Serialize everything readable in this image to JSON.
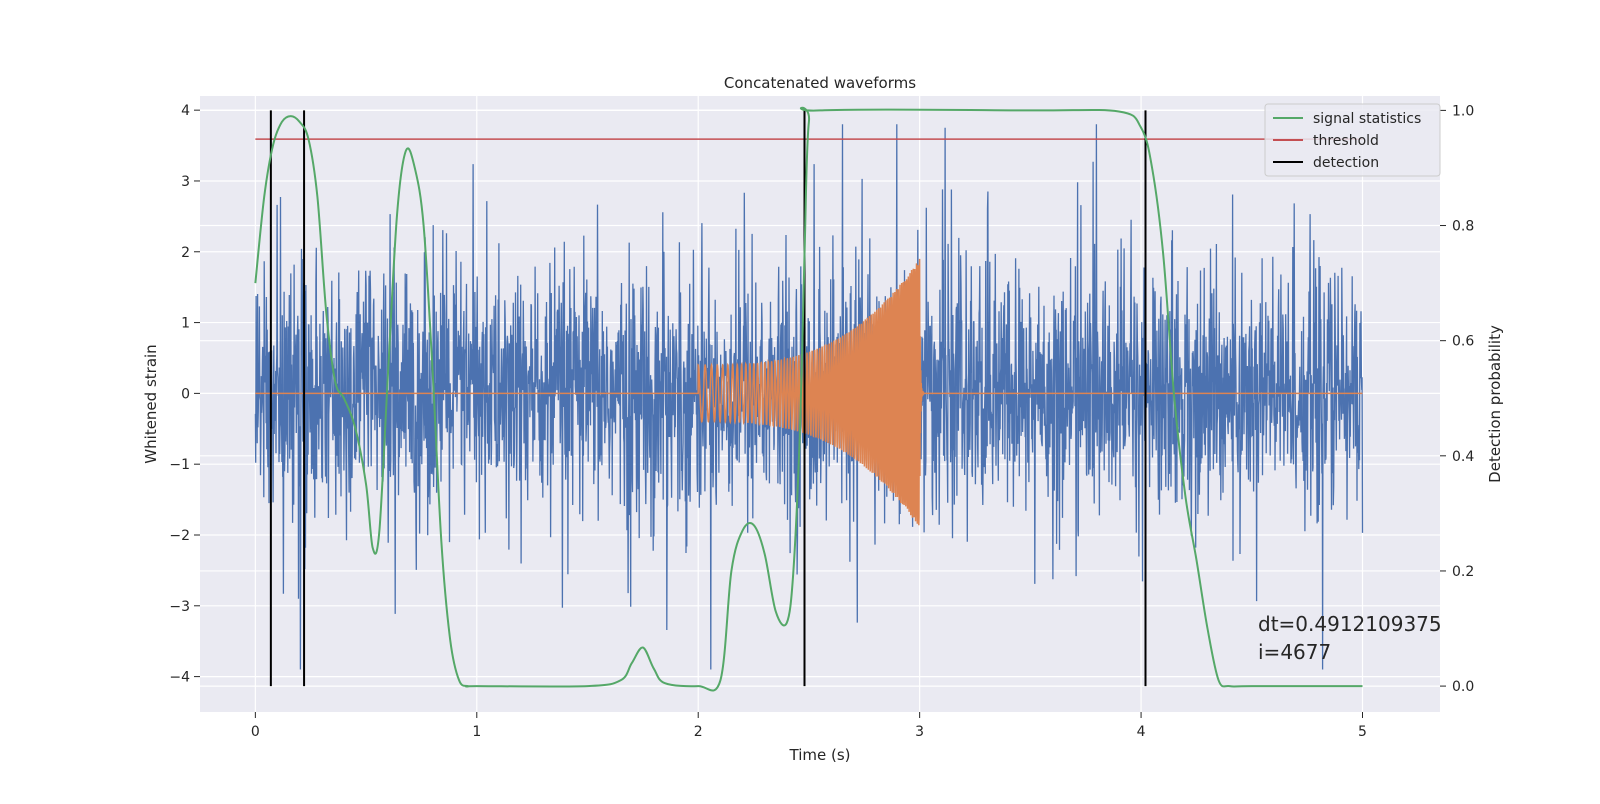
{
  "chart_data": {
    "type": "line",
    "title": "Concatenated waveforms",
    "xlabel": "Time (s)",
    "ylabel": "Whitened strain",
    "y2label": "Detection probability",
    "xlim": [
      -0.25,
      5.35
    ],
    "ylim": [
      -4.5,
      4.2
    ],
    "y2lim": [
      -0.045,
      1.025
    ],
    "xticks": [
      0,
      1,
      2,
      3,
      4,
      5
    ],
    "yticks": [
      -4,
      -3,
      -2,
      -1,
      0,
      1,
      2,
      3,
      4
    ],
    "y2ticks": [
      0.0,
      0.2,
      0.4,
      0.6,
      0.8,
      1.0
    ],
    "grid": true,
    "legend_position": "top-right",
    "colors": {
      "noise": "#4c72b0",
      "injection": "#dd8452",
      "signal_statistics": "#55a868",
      "threshold": "#c44e52",
      "detection": "#000000",
      "axes_bg": "#eaeaf2"
    },
    "series": [
      {
        "kind": "noise",
        "x_range": [
          0,
          5
        ],
        "envelope_approx": 0.85,
        "peaks_approx": 2.9
      },
      {
        "kind": "injection",
        "segments": [
          {
            "start": 0,
            "end": 2,
            "amplitude": 0
          },
          {
            "start": 2,
            "end": 3,
            "amplitude_start": 0.4,
            "amplitude_peak": 1.9
          },
          {
            "start": 3,
            "end": 5,
            "amplitude": 0
          }
        ]
      },
      {
        "name": "signal statistics",
        "axis": "right",
        "x": [
          0.0,
          0.04,
          0.08,
          0.12,
          0.16,
          0.2,
          0.24,
          0.28,
          0.32,
          0.36,
          0.4,
          0.45,
          0.5,
          0.53,
          0.56,
          0.6,
          0.64,
          0.68,
          0.72,
          0.76,
          0.8,
          0.84,
          0.88,
          0.92,
          0.96,
          1.0,
          1.5,
          1.65,
          1.7,
          1.75,
          1.8,
          1.85,
          2.0,
          2.1,
          2.15,
          2.2,
          2.25,
          2.3,
          2.35,
          2.4,
          2.43,
          2.46,
          2.48,
          2.5,
          2.55,
          3.5,
          3.9,
          4.0,
          4.05,
          4.1,
          4.15,
          4.2,
          4.25,
          4.3,
          4.35,
          4.4,
          4.5,
          5.0
        ],
        "y": [
          0.7,
          0.85,
          0.94,
          0.98,
          0.99,
          0.98,
          0.95,
          0.85,
          0.65,
          0.53,
          0.5,
          0.45,
          0.35,
          0.24,
          0.27,
          0.55,
          0.82,
          0.93,
          0.9,
          0.8,
          0.55,
          0.25,
          0.08,
          0.01,
          0.0,
          0.0,
          0.0,
          0.01,
          0.04,
          0.067,
          0.03,
          0.005,
          0.0,
          0.01,
          0.2,
          0.27,
          0.28,
          0.23,
          0.13,
          0.11,
          0.2,
          0.45,
          0.75,
          0.98,
          1.0,
          1.0,
          0.998,
          0.97,
          0.9,
          0.75,
          0.5,
          0.33,
          0.22,
          0.1,
          0.01,
          0.0,
          0.0,
          0.0
        ]
      },
      {
        "name": "threshold",
        "axis": "right",
        "x": [
          0,
          5
        ],
        "y": [
          0.95,
          0.95
        ]
      },
      {
        "name": "detection",
        "axis": "right",
        "type": "vlines",
        "x": [
          0.07,
          0.22,
          2.48,
          4.02
        ],
        "y_range": [
          0.0,
          1.0
        ]
      }
    ],
    "annotation": "dt=0.4912109375\n i=4677"
  }
}
